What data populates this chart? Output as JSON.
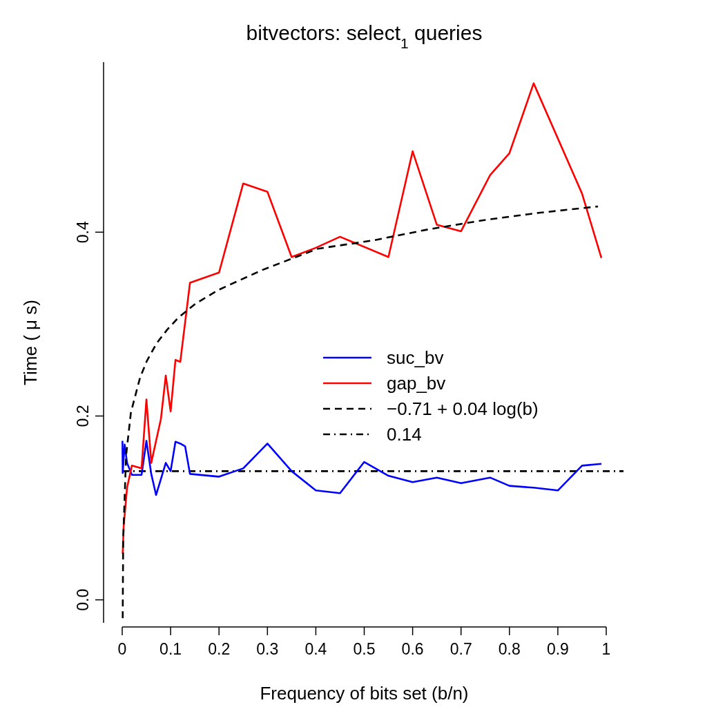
{
  "chart_data": {
    "type": "line",
    "title": "bitvectors: select$_{1}$ queries",
    "xlabel": "Frequency of bits set (b/n)",
    "ylabel": "Time ( μ s)",
    "xlim": [
      0,
      1
    ],
    "xticks": [
      0,
      0.1,
      0.2,
      0.3,
      0.4,
      0.5,
      0.6,
      0.7,
      0.8,
      0.9,
      1
    ],
    "ylim": [
      -0.025,
      0.585
    ],
    "yticks": [
      {
        "value": 0,
        "label": "0.0"
      },
      0.2,
      0.4
    ],
    "grid": false,
    "legend": "right",
    "marker": "none",
    "series": [
      {
        "name": "suc_bv",
        "color": "#0000ff",
        "line_style": "solid",
        "x": [
          0.0005,
          0.001,
          0.005,
          0.01,
          0.02,
          0.04,
          0.05,
          0.06,
          0.07,
          0.09,
          0.1,
          0.11,
          0.12,
          0.13,
          0.14,
          0.2,
          0.25,
          0.3,
          0.35,
          0.4,
          0.45,
          0.5,
          0.55,
          0.6,
          0.65,
          0.7,
          0.76,
          0.8,
          0.85,
          0.9,
          0.95,
          0.99
        ],
        "values": [
          0.173,
          0.138,
          0.169,
          0.149,
          0.136,
          0.136,
          0.173,
          0.137,
          0.114,
          0.149,
          0.14,
          0.172,
          0.17,
          0.167,
          0.137,
          0.134,
          0.143,
          0.17,
          0.14,
          0.119,
          0.116,
          0.15,
          0.135,
          0.128,
          0.133,
          0.127,
          0.133,
          0.124,
          0.122,
          0.119,
          0.146,
          0.148
        ]
      },
      {
        "name": "gap_bv",
        "color": "#ff0000",
        "line_style": "solid",
        "x": [
          0.001,
          0.003,
          0.01,
          0.02,
          0.04,
          0.05,
          0.06,
          0.08,
          0.09,
          0.1,
          0.11,
          0.12,
          0.14,
          0.2,
          0.25,
          0.3,
          0.35,
          0.4,
          0.45,
          0.55,
          0.6,
          0.65,
          0.7,
          0.76,
          0.8,
          0.85,
          0.95,
          0.99
        ],
        "values": [
          0.05,
          0.08,
          0.122,
          0.146,
          0.143,
          0.218,
          0.149,
          0.197,
          0.244,
          0.205,
          0.261,
          0.259,
          0.345,
          0.356,
          0.453,
          0.444,
          0.373,
          0.383,
          0.395,
          0.373,
          0.488,
          0.408,
          0.401,
          0.462,
          0.486,
          0.562,
          0.442,
          0.372
        ]
      },
      {
        "name": "−0.71  +  0.04  log(b)",
        "color": "#000000",
        "line_style": "dashed",
        "x": [
          0.001,
          0.002,
          0.008,
          0.018,
          0.037,
          0.051,
          0.071,
          0.093,
          0.116,
          0.151,
          0.198,
          0.29,
          0.404,
          0.518,
          0.632,
          0.746,
          0.86,
          0.983
        ],
        "values": [
          -0.02,
          0.065,
          0.157,
          0.204,
          0.242,
          0.26,
          0.279,
          0.294,
          0.307,
          0.322,
          0.337,
          0.359,
          0.382,
          0.391,
          0.403,
          0.413,
          0.421,
          0.428
        ]
      }
    ],
    "ref_lines": [
      {
        "axis": "y",
        "value": 0.14,
        "label": "0.14",
        "color": "#000000",
        "line_style": "dashdot"
      }
    ]
  }
}
